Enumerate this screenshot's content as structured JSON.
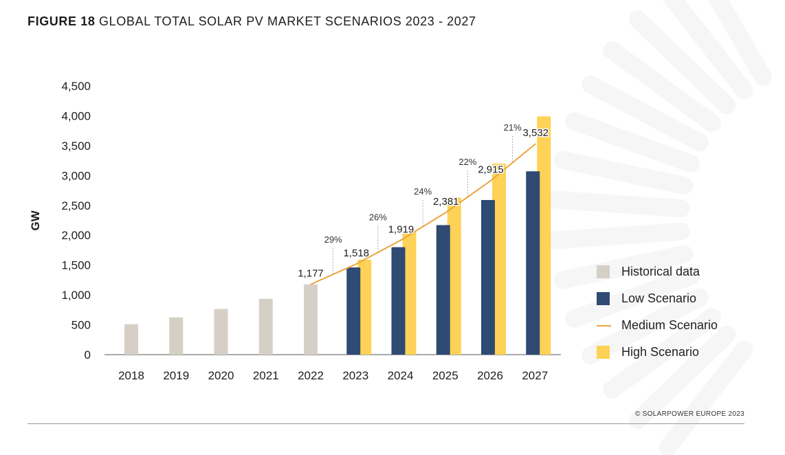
{
  "figure": {
    "number_label": "FIGURE 18",
    "title": "GLOBAL TOTAL SOLAR PV MARKET SCENARIOS 2023 - 2027",
    "credit": "© SOLARPOWER EUROPE 2023"
  },
  "colors": {
    "historical": "#d6cfc6",
    "low": "#2f4a73",
    "medium": "#eaa63f",
    "high": "#fdd257",
    "axis": "#555555",
    "text": "#1d1d1f",
    "sunburst": "#f6f6f6"
  },
  "chart_data": {
    "type": "bar",
    "title": "GLOBAL TOTAL SOLAR PV MARKET SCENARIOS 2023 - 2027",
    "ylabel": "GW",
    "xlabel": "",
    "ylim": [
      0,
      4500
    ],
    "yticks": [
      0,
      500,
      1000,
      1500,
      2000,
      2500,
      3000,
      3500,
      4000,
      4500
    ],
    "ytick_labels": [
      "0",
      "500",
      "1,000",
      "1,500",
      "2,000",
      "2,500",
      "3,000",
      "3,500",
      "4,000",
      "4,500"
    ],
    "categories": [
      "2018",
      "2019",
      "2020",
      "2021",
      "2022",
      "2023",
      "2024",
      "2025",
      "2026",
      "2027"
    ],
    "grid": false,
    "legend_position": "right",
    "series": [
      {
        "name": "Historical data",
        "kind": "bar",
        "color_key": "historical",
        "values": [
          510,
          625,
          765,
          935,
          1177,
          null,
          null,
          null,
          null,
          null
        ]
      },
      {
        "name": "Low Scenario",
        "kind": "bar",
        "color_key": "low",
        "values": [
          null,
          null,
          null,
          null,
          null,
          1460,
          1800,
          2170,
          2590,
          3070
        ]
      },
      {
        "name": "Medium Scenario",
        "kind": "line",
        "color_key": "medium",
        "values": [
          null,
          null,
          null,
          null,
          1177,
          1518,
          1919,
          2381,
          2915,
          3532
        ],
        "labels": [
          "",
          "",
          "",
          "",
          "1,177",
          "1,518",
          "1,919",
          "2,381",
          "2,915",
          "3,532"
        ],
        "growth_labels": [
          "",
          "",
          "",
          "",
          "",
          "29%",
          "26%",
          "24%",
          "22%",
          "21%"
        ]
      },
      {
        "name": "High Scenario",
        "kind": "bar",
        "color_key": "high",
        "values": [
          null,
          null,
          null,
          null,
          null,
          1590,
          2050,
          2630,
          3200,
          3990
        ]
      }
    ]
  }
}
